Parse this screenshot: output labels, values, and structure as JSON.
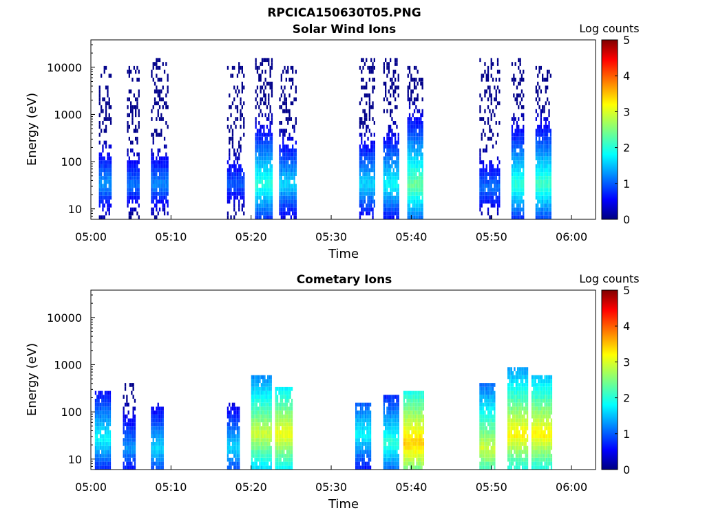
{
  "figure_title": "RPCICA150630T05.PNG",
  "chart_data": [
    {
      "type": "heatmap",
      "title": "Solar Wind Ions",
      "xlabel": "Time",
      "ylabel": "Energy (eV)",
      "xticks": [
        "05:00",
        "05:10",
        "05:20",
        "05:30",
        "05:40",
        "05:50",
        "06:00"
      ],
      "xlim": [
        "05:00",
        "06:03"
      ],
      "yscale": "log",
      "ylim": [
        6,
        38000
      ],
      "yticks": [
        10,
        100,
        1000,
        10000
      ],
      "colorbar": {
        "label": "Log counts",
        "range": [
          0,
          5
        ],
        "ticks": [
          0,
          1,
          2,
          3,
          4,
          5
        ],
        "colormap": "jet"
      },
      "grid": false,
      "bursts": [
        {
          "start": "05:01:00",
          "end": "05:02:30",
          "peak_energy_ev": 30,
          "peak_log_counts": 1.5,
          "max_energy_ev": 9000
        },
        {
          "start": "05:04:30",
          "end": "05:06:00",
          "peak_energy_ev": 30,
          "peak_log_counts": 1.3,
          "max_energy_ev": 9000
        },
        {
          "start": "05:07:30",
          "end": "05:09:30",
          "peak_energy_ev": 30,
          "peak_log_counts": 1.4,
          "max_energy_ev": 14000
        },
        {
          "start": "05:17:00",
          "end": "05:19:00",
          "peak_energy_ev": 30,
          "peak_log_counts": 1.2,
          "max_energy_ev": 12000
        },
        {
          "start": "05:20:30",
          "end": "05:22:30",
          "peak_energy_ev": 30,
          "peak_log_counts": 2.2,
          "max_energy_ev": 14000
        },
        {
          "start": "05:23:30",
          "end": "05:25:30",
          "peak_energy_ev": 30,
          "peak_log_counts": 1.8,
          "max_energy_ev": 9000
        },
        {
          "start": "05:33:30",
          "end": "05:35:30",
          "peak_energy_ev": 30,
          "peak_log_counts": 1.8,
          "max_energy_ev": 14000
        },
        {
          "start": "05:36:30",
          "end": "05:38:30",
          "peak_energy_ev": 30,
          "peak_log_counts": 2.0,
          "max_energy_ev": 14000
        },
        {
          "start": "05:39:30",
          "end": "05:41:30",
          "peak_energy_ev": 30,
          "peak_log_counts": 2.5,
          "max_energy_ev": 9000
        },
        {
          "start": "05:48:30",
          "end": "05:51:00",
          "peak_energy_ev": 25,
          "peak_log_counts": 1.3,
          "max_energy_ev": 14000
        },
        {
          "start": "05:52:30",
          "end": "05:54:00",
          "peak_energy_ev": 30,
          "peak_log_counts": 2.2,
          "max_energy_ev": 14000
        },
        {
          "start": "05:55:30",
          "end": "05:57:30",
          "peak_energy_ev": 30,
          "peak_log_counts": 2.3,
          "max_energy_ev": 9000
        }
      ]
    },
    {
      "type": "heatmap",
      "title": "Cometary Ions",
      "xlabel": "Time",
      "ylabel": "Energy (eV)",
      "xticks": [
        "05:00",
        "05:10",
        "05:20",
        "05:30",
        "05:40",
        "05:50",
        "06:00"
      ],
      "xlim": [
        "05:00",
        "06:03"
      ],
      "yscale": "log",
      "ylim": [
        6,
        38000
      ],
      "yticks": [
        10,
        100,
        1000,
        10000
      ],
      "colorbar": {
        "label": "Log counts",
        "range": [
          0,
          5
        ],
        "ticks": [
          0,
          1,
          2,
          3,
          4,
          5
        ],
        "colormap": "jet"
      },
      "grid": false,
      "bursts": [
        {
          "start": "05:00:30",
          "end": "05:02:30",
          "peak_energy_ev": 25,
          "peak_log_counts": 2.0,
          "max_energy_ev": 250
        },
        {
          "start": "05:04:00",
          "end": "05:05:30",
          "peak_energy_ev": 15,
          "peak_log_counts": 1.5,
          "max_energy_ev": 400
        },
        {
          "start": "05:07:30",
          "end": "05:09:00",
          "peak_energy_ev": 15,
          "peak_log_counts": 1.8,
          "max_energy_ev": 150
        },
        {
          "start": "05:17:00",
          "end": "05:18:30",
          "peak_energy_ev": 15,
          "peak_log_counts": 1.8,
          "max_energy_ev": 150
        },
        {
          "start": "05:20:00",
          "end": "05:22:30",
          "peak_energy_ev": 30,
          "peak_log_counts": 3.0,
          "max_energy_ev": 600
        },
        {
          "start": "05:23:00",
          "end": "05:25:00",
          "peak_energy_ev": 30,
          "peak_log_counts": 3.2,
          "max_energy_ev": 300
        },
        {
          "start": "05:33:00",
          "end": "05:35:00",
          "peak_energy_ev": 30,
          "peak_log_counts": 2.0,
          "max_energy_ev": 150
        },
        {
          "start": "05:36:30",
          "end": "05:38:30",
          "peak_energy_ev": 20,
          "peak_log_counts": 2.2,
          "max_energy_ev": 200
        },
        {
          "start": "05:39:00",
          "end": "05:41:30",
          "peak_energy_ev": 20,
          "peak_log_counts": 3.5,
          "max_energy_ev": 250
        },
        {
          "start": "05:48:30",
          "end": "05:50:30",
          "peak_energy_ev": 15,
          "peak_log_counts": 3.0,
          "max_energy_ev": 400
        },
        {
          "start": "05:52:00",
          "end": "05:54:30",
          "peak_energy_ev": 30,
          "peak_log_counts": 3.3,
          "max_energy_ev": 800
        },
        {
          "start": "05:55:00",
          "end": "05:57:30",
          "peak_energy_ev": 30,
          "peak_log_counts": 3.3,
          "max_energy_ev": 600
        }
      ]
    }
  ]
}
